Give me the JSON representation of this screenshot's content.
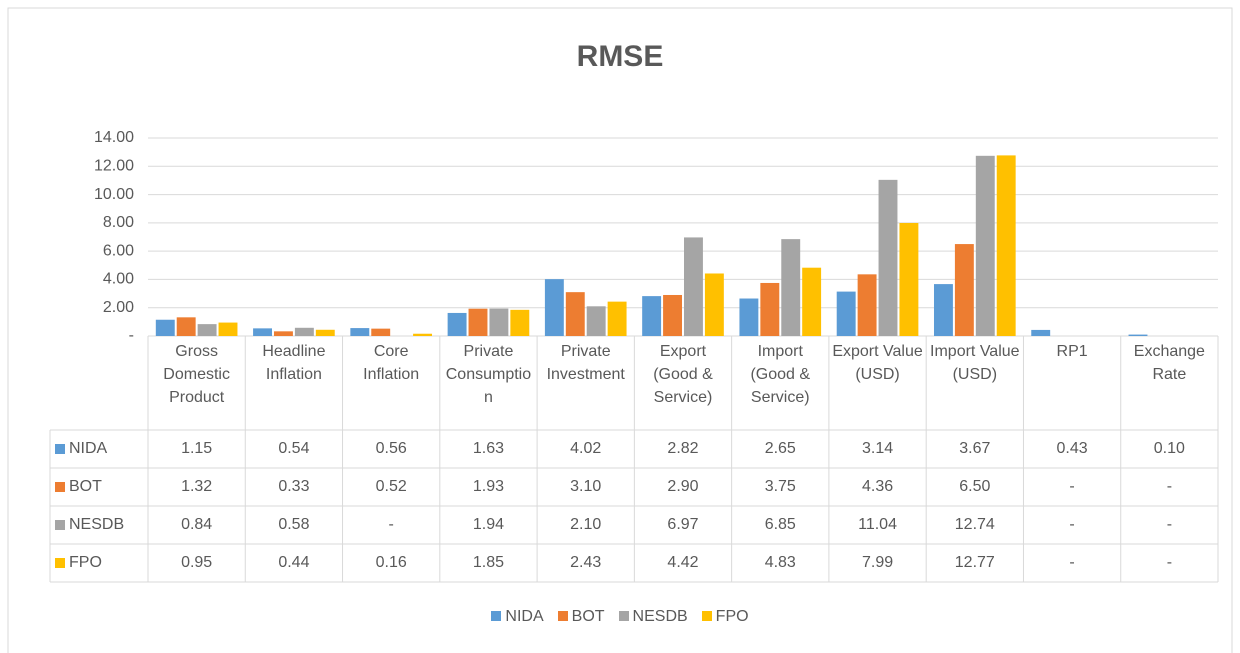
{
  "chart_data": {
    "type": "bar",
    "title": "RMSE",
    "categories": [
      "Gross Domestic Product",
      "Headline Inflation",
      "Core Inflation",
      "Private Consumption",
      "Private Investment",
      "Export (Good & Service)",
      "Import (Good & Service)",
      "Export Value (USD)",
      "Import Value (USD)",
      "RP1",
      "Exchange Rate"
    ],
    "series": [
      {
        "name": "NIDA",
        "color": "#5b9bd5",
        "values": [
          1.15,
          0.54,
          0.56,
          1.63,
          4.02,
          2.82,
          2.65,
          3.14,
          3.67,
          0.43,
          0.1
        ],
        "value_labels": [
          "1.15",
          "0.54",
          "0.56",
          "1.63",
          "4.02",
          "2.82",
          "2.65",
          "3.14",
          "3.67",
          "0.43",
          "0.10"
        ]
      },
      {
        "name": "BOT",
        "color": "#ed7d31",
        "values": [
          1.32,
          0.33,
          0.52,
          1.93,
          3.1,
          2.9,
          3.75,
          4.36,
          6.5,
          null,
          null
        ],
        "value_labels": [
          "1.32",
          "0.33",
          "0.52",
          "1.93",
          "3.10",
          "2.90",
          "3.75",
          "4.36",
          "6.50",
          "-",
          "-"
        ]
      },
      {
        "name": "NESDB",
        "color": "#a5a5a5",
        "values": [
          0.84,
          0.58,
          null,
          1.94,
          2.1,
          6.97,
          6.85,
          11.04,
          12.74,
          null,
          null
        ],
        "value_labels": [
          "0.84",
          "0.58",
          "-",
          "1.94",
          "2.10",
          "6.97",
          "6.85",
          "11.04",
          "12.74",
          "-",
          "-"
        ]
      },
      {
        "name": "FPO",
        "color": "#ffc000",
        "values": [
          0.95,
          0.44,
          0.16,
          1.85,
          2.43,
          4.42,
          4.83,
          7.99,
          12.77,
          null,
          null
        ],
        "value_labels": [
          "0.95",
          "0.44",
          "0.16",
          "1.85",
          "2.43",
          "4.42",
          "4.83",
          "7.99",
          "12.77",
          "-",
          "-"
        ]
      }
    ],
    "ylim": [
      0,
      14
    ],
    "yticks": [
      {
        "value": 0,
        "label": "-"
      },
      {
        "value": 2,
        "label": "2.00"
      },
      {
        "value": 4,
        "label": "4.00"
      },
      {
        "value": 6,
        "label": "6.00"
      },
      {
        "value": 8,
        "label": "8.00"
      },
      {
        "value": 10,
        "label": "10.00"
      },
      {
        "value": 12,
        "label": "12.00"
      },
      {
        "value": 14,
        "label": "14.00"
      }
    ],
    "grid": true,
    "legend": "bottom"
  }
}
